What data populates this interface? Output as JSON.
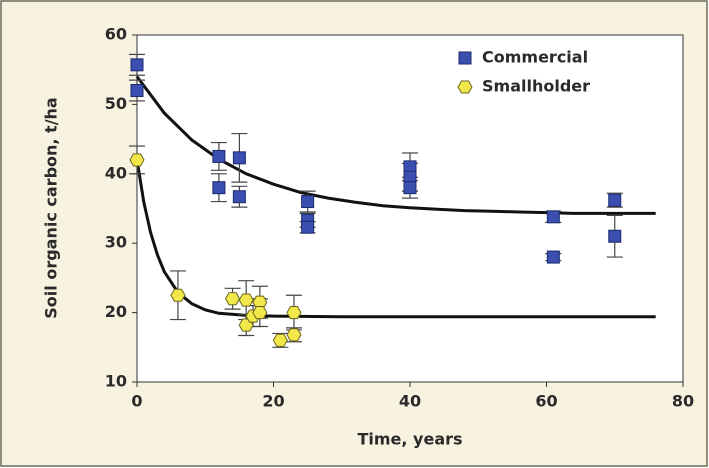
{
  "chart_data": {
    "type": "scatter",
    "xlabel": "Time, years",
    "ylabel": "Soil organic carbon, t/ha",
    "xlim": [
      0,
      80
    ],
    "xticks": [
      0,
      20,
      40,
      60,
      80
    ],
    "ylim": [
      10,
      60
    ],
    "yticks": [
      10,
      20,
      30,
      40,
      50,
      60
    ],
    "legend": "upper right",
    "series": [
      {
        "name": "Commercial",
        "color": "#3a4fb0",
        "marker": "square",
        "x": [
          0,
          0,
          12,
          12,
          15,
          15,
          25,
          25,
          25,
          40,
          40,
          40,
          61,
          61,
          70,
          70
        ],
        "values": [
          55.7,
          52,
          42.5,
          38,
          42.3,
          36.7,
          36,
          33.3,
          32.3,
          41,
          39.5,
          38,
          33.8,
          28,
          36.2,
          31
        ],
        "errors": [
          1.5,
          1.5,
          2,
          2,
          3.5,
          1.5,
          1.5,
          1,
          0.8,
          2,
          2,
          1.5,
          0.8,
          0.5,
          1,
          3
        ]
      },
      {
        "name": "Smallholder",
        "color": "#f2e84a",
        "marker": "hexagon",
        "x": [
          0,
          6,
          14,
          16,
          16,
          17,
          18,
          18,
          21,
          23,
          23
        ],
        "values": [
          42,
          22.5,
          22,
          21.8,
          18.2,
          19.5,
          21.5,
          20,
          16,
          20,
          16.8
        ],
        "errors": [
          2,
          3.5,
          1.5,
          2.8,
          1.5,
          1.5,
          2.3,
          2,
          1,
          2.5,
          1
        ]
      }
    ],
    "curves": [
      {
        "color": "#111111",
        "x": [
          0,
          4,
          8,
          12,
          16,
          20,
          24,
          28,
          32,
          36,
          40,
          44,
          48,
          52,
          56,
          60,
          64,
          68,
          72,
          76
        ],
        "values": [
          54.0,
          48.75,
          44.9,
          42.1,
          40.0,
          38.5,
          37.3,
          36.5,
          35.9,
          35.4,
          35.1,
          34.9,
          34.7,
          34.6,
          34.5,
          34.4,
          34.3,
          34.3,
          34.3,
          34.3
        ]
      },
      {
        "color": "#111111",
        "x": [
          0,
          1,
          2,
          3,
          4,
          6,
          8,
          10,
          12,
          16,
          20,
          30,
          40,
          50,
          60,
          70,
          76
        ],
        "values": [
          42.0,
          35.9,
          31.5,
          28.3,
          25.9,
          22.9,
          21.3,
          20.4,
          19.9,
          19.6,
          19.5,
          19.4,
          19.4,
          19.4,
          19.4,
          19.4,
          19.4
        ]
      }
    ]
  }
}
